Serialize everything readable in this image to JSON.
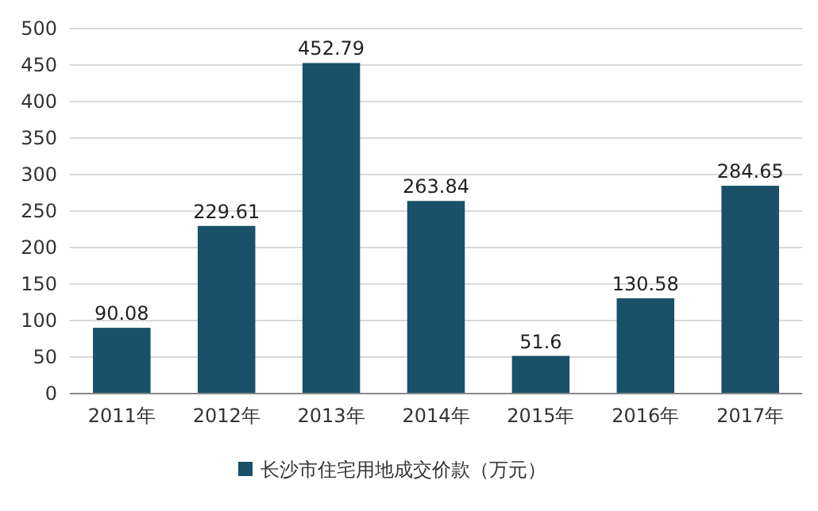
{
  "chart_data": {
    "type": "bar",
    "categories": [
      "2011年",
      "2012年",
      "2013年",
      "2014年",
      "2015年",
      "2016年",
      "2017年"
    ],
    "series": [
      {
        "name": "长沙市住宅用地成交价款（万元）",
        "color": "#1a5068",
        "values": [
          90.08,
          229.61,
          452.79,
          263.84,
          51.6,
          130.58,
          284.65
        ]
      }
    ],
    "ylim": [
      0,
      500
    ],
    "yticks": [
      0,
      50,
      100,
      150,
      200,
      250,
      300,
      350,
      400,
      450,
      500
    ],
    "grid": "y",
    "data_labels": true,
    "legend": "bottom"
  }
}
